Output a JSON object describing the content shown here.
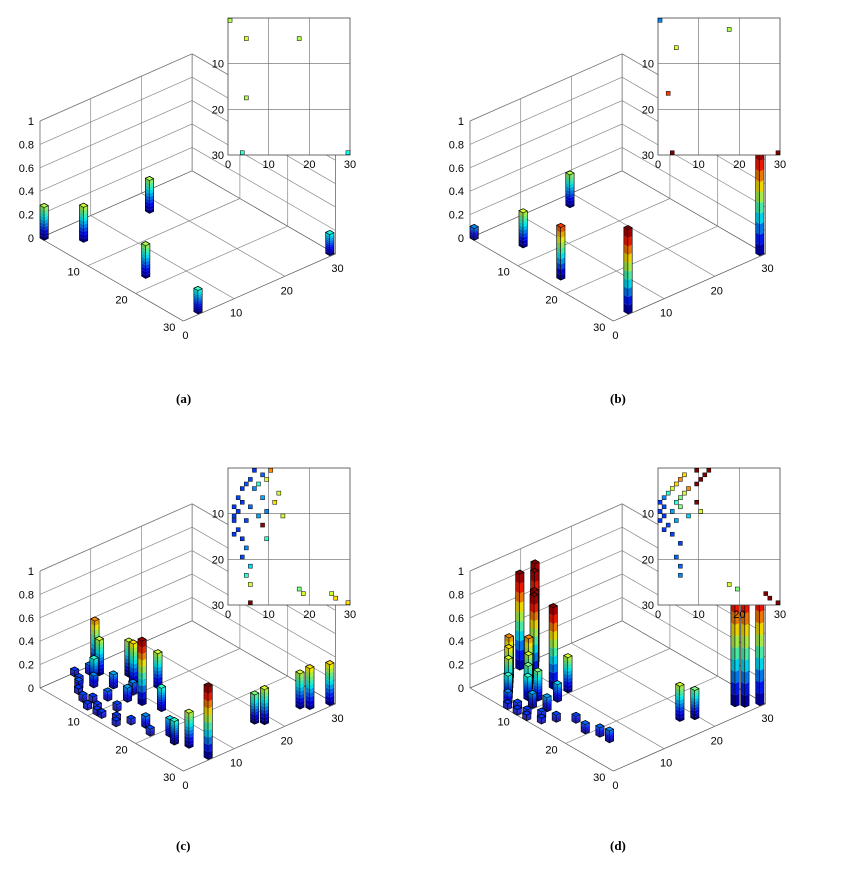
{
  "captions": {
    "a": "(a)",
    "b": "(b)",
    "c": "(c)",
    "d": "(d)"
  },
  "chart_data": [
    {
      "type": "bar3d",
      "panel": "a",
      "zticks": [
        "0",
        "0.2",
        "0.4",
        "0.6",
        "0.8",
        "1"
      ],
      "xticks": [
        "0",
        "10",
        "20",
        "30"
      ],
      "yticks": [
        "10",
        "20",
        "30"
      ],
      "inset_xticks": [
        "0",
        "10",
        "20",
        "30"
      ],
      "inset_yticks": [
        "10",
        "20",
        "30"
      ],
      "zlim": [
        0,
        1
      ],
      "bars": [
        {
          "row": 1,
          "col": 1,
          "value": 0.28
        },
        {
          "row": 5,
          "col": 5,
          "value": 0.3
        },
        {
          "row": 18,
          "col": 5,
          "value": 0.28
        },
        {
          "row": 5,
          "col": 18,
          "value": 0.28
        },
        {
          "row": 30,
          "col": 30,
          "value": 0.18
        },
        {
          "row": 30,
          "col": 4,
          "value": 0.2
        }
      ]
    },
    {
      "type": "bar3d",
      "panel": "b",
      "zticks": [
        "0",
        "0.2",
        "0.4",
        "0.6",
        "0.8",
        "1"
      ],
      "xticks": [
        "0",
        "10",
        "20",
        "30"
      ],
      "yticks": [
        "10",
        "20",
        "30"
      ],
      "inset_xticks": [
        "0",
        "10",
        "20",
        "30"
      ],
      "inset_yticks": [
        "10",
        "20",
        "30"
      ],
      "zlim": [
        0,
        1
      ],
      "bars": [
        {
          "row": 1,
          "col": 1,
          "value": 0.1
        },
        {
          "row": 7,
          "col": 5,
          "value": 0.3
        },
        {
          "row": 3,
          "col": 18,
          "value": 0.28
        },
        {
          "row": 17,
          "col": 3,
          "value": 0.45
        },
        {
          "row": 30,
          "col": 4,
          "value": 0.72
        },
        {
          "row": 30,
          "col": 30,
          "value": 0.9
        }
      ]
    },
    {
      "type": "bar3d",
      "panel": "c",
      "zticks": [
        "0",
        "0.2",
        "0.4",
        "0.6",
        "0.8",
        "1"
      ],
      "xticks": [
        "0",
        "10",
        "20",
        "30"
      ],
      "yticks": [
        "10",
        "20",
        "30"
      ],
      "inset_xticks": [
        "0",
        "10",
        "20",
        "30"
      ],
      "inset_yticks": [
        "10",
        "20",
        "30"
      ],
      "zlim": [
        0,
        1
      ],
      "bars": [
        {
          "row": 1,
          "col": 7,
          "value": 0.05
        },
        {
          "row": 1,
          "col": 11,
          "value": 0.4
        },
        {
          "row": 2,
          "col": 9,
          "value": 0.08
        },
        {
          "row": 3,
          "col": 6,
          "value": 0.06
        },
        {
          "row": 3,
          "col": 10,
          "value": 0.3
        },
        {
          "row": 4,
          "col": 5,
          "value": 0.07
        },
        {
          "row": 4,
          "col": 8,
          "value": 0.2
        },
        {
          "row": 5,
          "col": 4,
          "value": 0.05
        },
        {
          "row": 5,
          "col": 7,
          "value": 0.1
        },
        {
          "row": 6,
          "col": 13,
          "value": 0.3
        },
        {
          "row": 7,
          "col": 3,
          "value": 0.06
        },
        {
          "row": 7,
          "col": 9,
          "value": 0.12
        },
        {
          "row": 8,
          "col": 4,
          "value": 0.05
        },
        {
          "row": 8,
          "col": 12,
          "value": 0.35
        },
        {
          "row": 9,
          "col": 2,
          "value": 0.05
        },
        {
          "row": 9,
          "col": 6,
          "value": 0.08
        },
        {
          "row": 10,
          "col": 3,
          "value": 0.05
        },
        {
          "row": 10,
          "col": 10,
          "value": 0.1
        },
        {
          "row": 11,
          "col": 2,
          "value": 0.05
        },
        {
          "row": 11,
          "col": 8,
          "value": 0.12
        },
        {
          "row": 11,
          "col": 14,
          "value": 0.3
        },
        {
          "row": 12,
          "col": 2,
          "value": 0.05
        },
        {
          "row": 12,
          "col": 5,
          "value": 0.06
        },
        {
          "row": 13,
          "col": 9,
          "value": 0.55
        },
        {
          "row": 14,
          "col": 3,
          "value": 0.05
        },
        {
          "row": 15,
          "col": 2,
          "value": 0.05
        },
        {
          "row": 16,
          "col": 4,
          "value": 0.05
        },
        {
          "row": 16,
          "col": 10,
          "value": 0.2
        },
        {
          "row": 18,
          "col": 5,
          "value": 0.1
        },
        {
          "row": 20,
          "col": 4,
          "value": 0.06
        },
        {
          "row": 22,
          "col": 6,
          "value": 0.15
        },
        {
          "row": 24,
          "col": 5,
          "value": 0.2
        },
        {
          "row": 26,
          "col": 6,
          "value": 0.3
        },
        {
          "row": 27,
          "col": 18,
          "value": 0.25
        },
        {
          "row": 28,
          "col": 19,
          "value": 0.3
        },
        {
          "row": 28,
          "col": 26,
          "value": 0.3
        },
        {
          "row": 29,
          "col": 27,
          "value": 0.35
        },
        {
          "row": 30,
          "col": 6,
          "value": 0.62
        },
        {
          "row": 30,
          "col": 30,
          "value": 0.35
        }
      ]
    },
    {
      "type": "bar3d",
      "panel": "d",
      "zticks": [
        "0",
        "0.2",
        "0.4",
        "0.6",
        "0.8",
        "1"
      ],
      "xticks": [
        "0",
        "10",
        "20",
        "30"
      ],
      "yticks": [
        "10",
        "20",
        "30"
      ],
      "inset_xticks": [
        "0",
        "10",
        "20",
        "30"
      ],
      "inset_yticks": [
        "10",
        "20",
        "30"
      ],
      "zlim": [
        0,
        1
      ],
      "bars": [
        {
          "row": 1,
          "col": 10,
          "value": 0.82
        },
        {
          "row": 1,
          "col": 13,
          "value": 0.85
        },
        {
          "row": 2,
          "col": 7,
          "value": 0.35
        },
        {
          "row": 2,
          "col": 12,
          "value": 0.82
        },
        {
          "row": 3,
          "col": 6,
          "value": 0.4
        },
        {
          "row": 3,
          "col": 11,
          "value": 0.7
        },
        {
          "row": 4,
          "col": 5,
          "value": 0.35
        },
        {
          "row": 4,
          "col": 10,
          "value": 0.7
        },
        {
          "row": 5,
          "col": 4,
          "value": 0.3
        },
        {
          "row": 5,
          "col": 8,
          "value": 0.4
        },
        {
          "row": 6,
          "col": 3,
          "value": 0.2
        },
        {
          "row": 6,
          "col": 7,
          "value": 0.3
        },
        {
          "row": 7,
          "col": 2,
          "value": 0.1
        },
        {
          "row": 7,
          "col": 6,
          "value": 0.25
        },
        {
          "row": 8,
          "col": 1,
          "value": 0.05
        },
        {
          "row": 8,
          "col": 5,
          "value": 0.2
        },
        {
          "row": 8,
          "col": 10,
          "value": 0.7
        },
        {
          "row": 9,
          "col": 2,
          "value": 0.06
        },
        {
          "row": 9,
          "col": 6,
          "value": 0.25
        },
        {
          "row": 10,
          "col": 1,
          "value": 0.05
        },
        {
          "row": 10,
          "col": 4,
          "value": 0.12
        },
        {
          "row": 10,
          "col": 11,
          "value": 0.3
        },
        {
          "row": 11,
          "col": 2,
          "value": 0.05
        },
        {
          "row": 11,
          "col": 8,
          "value": 0.15
        },
        {
          "row": 12,
          "col": 1,
          "value": 0.05
        },
        {
          "row": 12,
          "col": 5,
          "value": 0.12
        },
        {
          "row": 13,
          "col": 3,
          "value": 0.06
        },
        {
          "row": 14,
          "col": 2,
          "value": 0.05
        },
        {
          "row": 15,
          "col": 4,
          "value": 0.06
        },
        {
          "row": 17,
          "col": 6,
          "value": 0.06
        },
        {
          "row": 20,
          "col": 5,
          "value": 0.08
        },
        {
          "row": 22,
          "col": 6,
          "value": 0.08
        },
        {
          "row": 24,
          "col": 6,
          "value": 0.1
        },
        {
          "row": 26,
          "col": 18,
          "value": 0.3
        },
        {
          "row": 27,
          "col": 20,
          "value": 0.25
        },
        {
          "row": 28,
          "col": 27,
          "value": 1.0
        },
        {
          "row": 29,
          "col": 28,
          "value": 1.0
        },
        {
          "row": 30,
          "col": 30,
          "value": 1.0
        }
      ]
    }
  ]
}
